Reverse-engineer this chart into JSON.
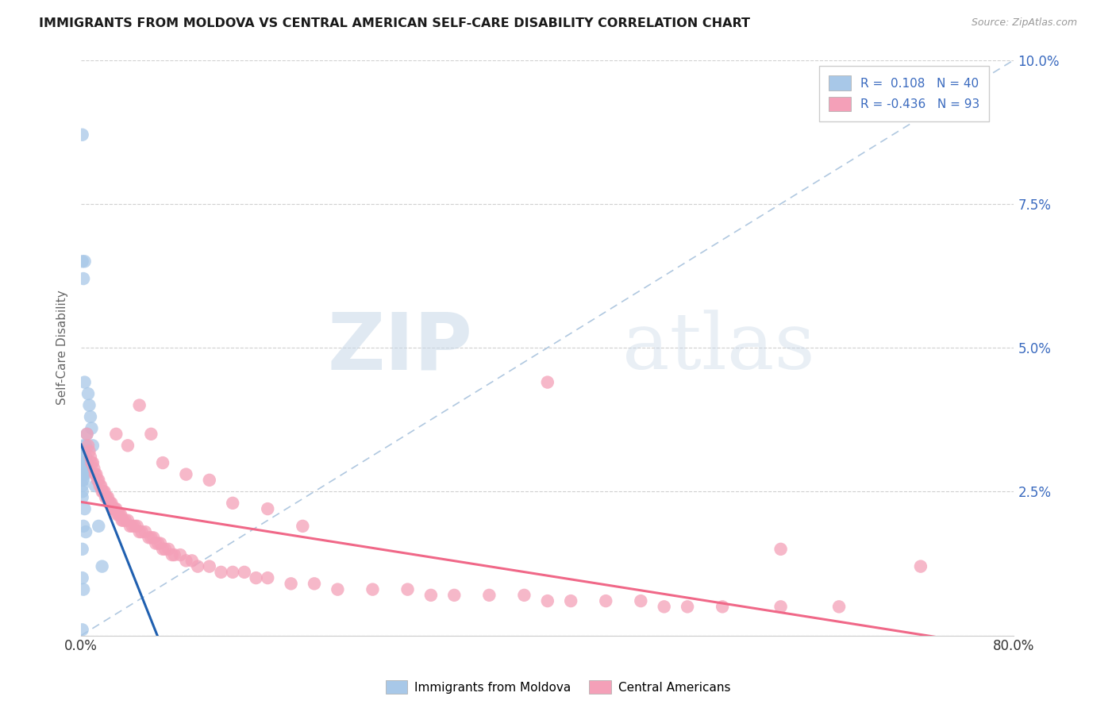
{
  "title": "IMMIGRANTS FROM MOLDOVA VS CENTRAL AMERICAN SELF-CARE DISABILITY CORRELATION CHART",
  "source": "Source: ZipAtlas.com",
  "ylabel": "Self-Care Disability",
  "xlim": [
    0.0,
    0.8
  ],
  "ylim": [
    0.0,
    0.1
  ],
  "yticks": [
    0.0,
    0.025,
    0.05,
    0.075,
    0.1
  ],
  "ytick_labels": [
    "",
    "2.5%",
    "5.0%",
    "7.5%",
    "10.0%"
  ],
  "xtick_labels": [
    "0.0%",
    "80.0%"
  ],
  "xtick_vals": [
    0.0,
    0.8
  ],
  "moldova_R": 0.108,
  "moldova_N": 40,
  "central_R": -0.436,
  "central_N": 93,
  "moldova_color": "#a8c8e8",
  "central_color": "#f4a0b8",
  "moldova_line_color": "#2060b0",
  "central_line_color": "#f06888",
  "dash_color": "#b0c8e0",
  "legend_label_moldova": "Immigrants from Moldova",
  "legend_label_central": "Central Americans",
  "watermark_zip": "ZIP",
  "watermark_atlas": "atlas",
  "moldova_x": [
    0.001,
    0.001,
    0.001,
    0.001,
    0.001,
    0.001,
    0.001,
    0.001,
    0.001,
    0.001,
    0.002,
    0.002,
    0.002,
    0.002,
    0.002,
    0.002,
    0.002,
    0.002,
    0.003,
    0.003,
    0.003,
    0.003,
    0.003,
    0.004,
    0.004,
    0.004,
    0.005,
    0.005,
    0.006,
    0.007,
    0.008,
    0.009,
    0.01,
    0.012,
    0.015,
    0.018,
    0.001,
    0.002,
    0.003,
    0.001
  ],
  "moldova_y": [
    0.03,
    0.029,
    0.028,
    0.027,
    0.026,
    0.025,
    0.024,
    0.015,
    0.01,
    0.001,
    0.033,
    0.031,
    0.03,
    0.029,
    0.028,
    0.027,
    0.019,
    0.008,
    0.044,
    0.032,
    0.03,
    0.028,
    0.022,
    0.033,
    0.031,
    0.018,
    0.035,
    0.03,
    0.042,
    0.04,
    0.038,
    0.036,
    0.033,
    0.026,
    0.019,
    0.012,
    0.065,
    0.062,
    0.065,
    0.087
  ],
  "central_x": [
    0.005,
    0.006,
    0.007,
    0.008,
    0.009,
    0.01,
    0.011,
    0.012,
    0.013,
    0.014,
    0.015,
    0.016,
    0.017,
    0.018,
    0.019,
    0.02,
    0.021,
    0.022,
    0.023,
    0.024,
    0.025,
    0.026,
    0.027,
    0.028,
    0.029,
    0.03,
    0.031,
    0.032,
    0.033,
    0.034,
    0.035,
    0.036,
    0.038,
    0.04,
    0.042,
    0.044,
    0.046,
    0.048,
    0.05,
    0.052,
    0.055,
    0.058,
    0.06,
    0.062,
    0.064,
    0.066,
    0.068,
    0.07,
    0.072,
    0.075,
    0.078,
    0.08,
    0.085,
    0.09,
    0.095,
    0.1,
    0.11,
    0.12,
    0.13,
    0.14,
    0.15,
    0.16,
    0.18,
    0.2,
    0.22,
    0.25,
    0.28,
    0.3,
    0.32,
    0.35,
    0.38,
    0.4,
    0.42,
    0.45,
    0.48,
    0.5,
    0.52,
    0.55,
    0.6,
    0.65,
    0.03,
    0.04,
    0.05,
    0.06,
    0.07,
    0.09,
    0.11,
    0.13,
    0.16,
    0.19,
    0.4,
    0.6,
    0.72
  ],
  "central_y": [
    0.035,
    0.033,
    0.032,
    0.031,
    0.03,
    0.03,
    0.029,
    0.028,
    0.028,
    0.027,
    0.027,
    0.026,
    0.026,
    0.025,
    0.025,
    0.025,
    0.024,
    0.024,
    0.024,
    0.023,
    0.023,
    0.023,
    0.022,
    0.022,
    0.022,
    0.022,
    0.021,
    0.021,
    0.021,
    0.021,
    0.02,
    0.02,
    0.02,
    0.02,
    0.019,
    0.019,
    0.019,
    0.019,
    0.018,
    0.018,
    0.018,
    0.017,
    0.017,
    0.017,
    0.016,
    0.016,
    0.016,
    0.015,
    0.015,
    0.015,
    0.014,
    0.014,
    0.014,
    0.013,
    0.013,
    0.012,
    0.012,
    0.011,
    0.011,
    0.011,
    0.01,
    0.01,
    0.009,
    0.009,
    0.008,
    0.008,
    0.008,
    0.007,
    0.007,
    0.007,
    0.007,
    0.006,
    0.006,
    0.006,
    0.006,
    0.005,
    0.005,
    0.005,
    0.005,
    0.005,
    0.035,
    0.033,
    0.04,
    0.035,
    0.03,
    0.028,
    0.027,
    0.023,
    0.022,
    0.019,
    0.044,
    0.015,
    0.012
  ]
}
